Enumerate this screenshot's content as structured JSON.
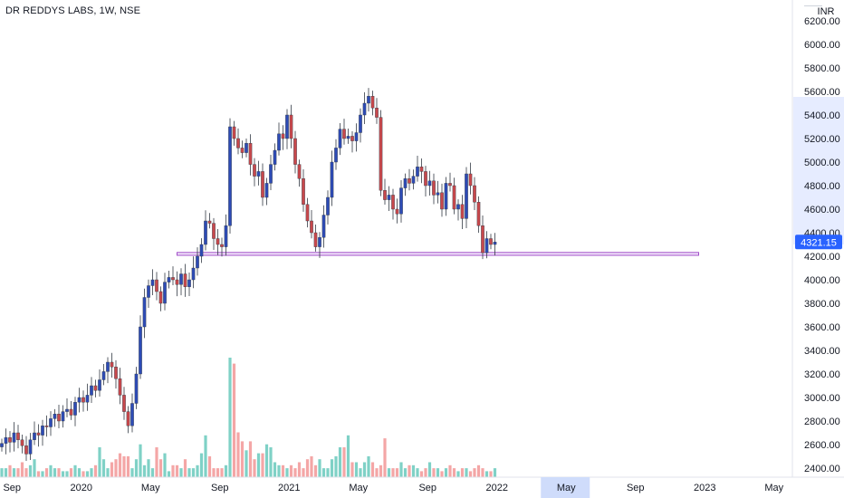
{
  "chart_data": {
    "type": "candlestick",
    "title": "DR REDDYS LABS, 1W, NSE",
    "currency": "INR",
    "last_price": "4321.15",
    "price_axis": {
      "ylim": [
        2300,
        6300
      ],
      "ticks": [
        "2400.00",
        "2600.00",
        "2800.00",
        "3000.00",
        "3200.00",
        "3400.00",
        "3600.00",
        "3800.00",
        "4000.00",
        "4200.00",
        "4400.00",
        "4600.00",
        "4800.00",
        "5000.00",
        "5200.00",
        "5400.00",
        "5600.00",
        "5800.00",
        "6000.00",
        "6200.00"
      ]
    },
    "time_axis": {
      "labels": [
        {
          "text": "Sep",
          "week": 2.5
        },
        {
          "text": "2020",
          "week": 19.5
        },
        {
          "text": "May",
          "week": 36.5
        },
        {
          "text": "Sep",
          "week": 53.5
        },
        {
          "text": "2021",
          "week": 70.5
        },
        {
          "text": "May",
          "week": 87.5
        },
        {
          "text": "Sep",
          "week": 104.5
        },
        {
          "text": "2022",
          "week": 121.5
        },
        {
          "text": "May",
          "week": 138.5,
          "highlight": true
        },
        {
          "text": "Sep",
          "week": 155.5
        },
        {
          "text": "2023",
          "week": 172.5
        },
        {
          "text": "May",
          "week": 189.5
        }
      ]
    },
    "support_zone": {
      "from_week": 43,
      "to_week": 171,
      "low": 4208,
      "high": 4232
    },
    "colors": {
      "up": "#2d4bb6",
      "down": "#c8484c",
      "vol_up": "#7fd1c6",
      "vol_down": "#f4a6a6",
      "zone": "#a04cc8",
      "tag": "#2962ff"
    },
    "close": [
      2610,
      2660,
      2620,
      2700,
      2640,
      2590,
      2520,
      2640,
      2700,
      2680,
      2760,
      2750,
      2820,
      2860,
      2800,
      2880,
      2900,
      2850,
      2960,
      3000,
      2960,
      3020,
      3100,
      3060,
      3150,
      3220,
      3300,
      3260,
      3160,
      3020,
      2880,
      2760,
      2950,
      3200,
      3600,
      3850,
      3950,
      4000,
      3900,
      3800,
      3980,
      4020,
      4000,
      3960,
      4050,
      3940,
      4000,
      4100,
      4200,
      4300,
      4500,
      4480,
      4350,
      4300,
      4280,
      4460,
      5300,
      5200,
      5120,
      5080,
      5160,
      4980,
      4880,
      4920,
      4700,
      4820,
      4980,
      5100,
      5240,
      5200,
      5400,
      5200,
      4980,
      4860,
      4640,
      4500,
      4400,
      4280,
      4360,
      4550,
      4700,
      5000,
      5120,
      5280,
      5200,
      5220,
      5180,
      5250,
      5400,
      5500,
      5560,
      5460,
      5380,
      4760,
      4680,
      4720,
      4600,
      4560,
      4780,
      4860,
      4820,
      4880,
      4960,
      4920,
      4800,
      4840,
      4720,
      4740,
      4600,
      4820,
      4800,
      4600,
      4640,
      4520,
      4900,
      4800,
      4660,
      4460,
      4230,
      4350,
      4300,
      4321
    ],
    "volume": [
      3,
      3,
      4,
      3,
      3,
      5,
      3,
      4,
      6,
      2,
      2,
      3,
      4,
      3,
      3,
      2,
      2,
      3,
      4,
      3,
      2,
      2,
      3,
      4,
      10,
      6,
      3,
      5,
      6,
      8,
      7,
      7,
      3,
      6,
      11,
      4,
      6,
      3,
      10,
      6,
      8,
      2,
      4,
      4,
      3,
      6,
      3,
      3,
      4,
      8,
      14,
      7,
      3,
      3,
      3,
      4,
      40,
      38,
      15,
      12,
      9,
      12,
      6,
      8,
      8,
      11,
      10,
      5,
      4,
      4,
      3,
      4,
      3,
      5,
      3,
      6,
      7,
      4,
      6,
      3,
      3,
      6,
      7,
      10,
      10,
      14,
      5,
      5,
      3,
      5,
      7,
      5,
      3,
      4,
      13,
      3,
      3,
      3,
      5,
      3,
      4,
      4,
      3,
      2,
      3,
      5,
      3,
      3,
      2,
      3,
      4,
      3,
      2,
      3,
      3,
      2,
      3,
      4,
      3,
      2,
      2,
      3
    ]
  }
}
